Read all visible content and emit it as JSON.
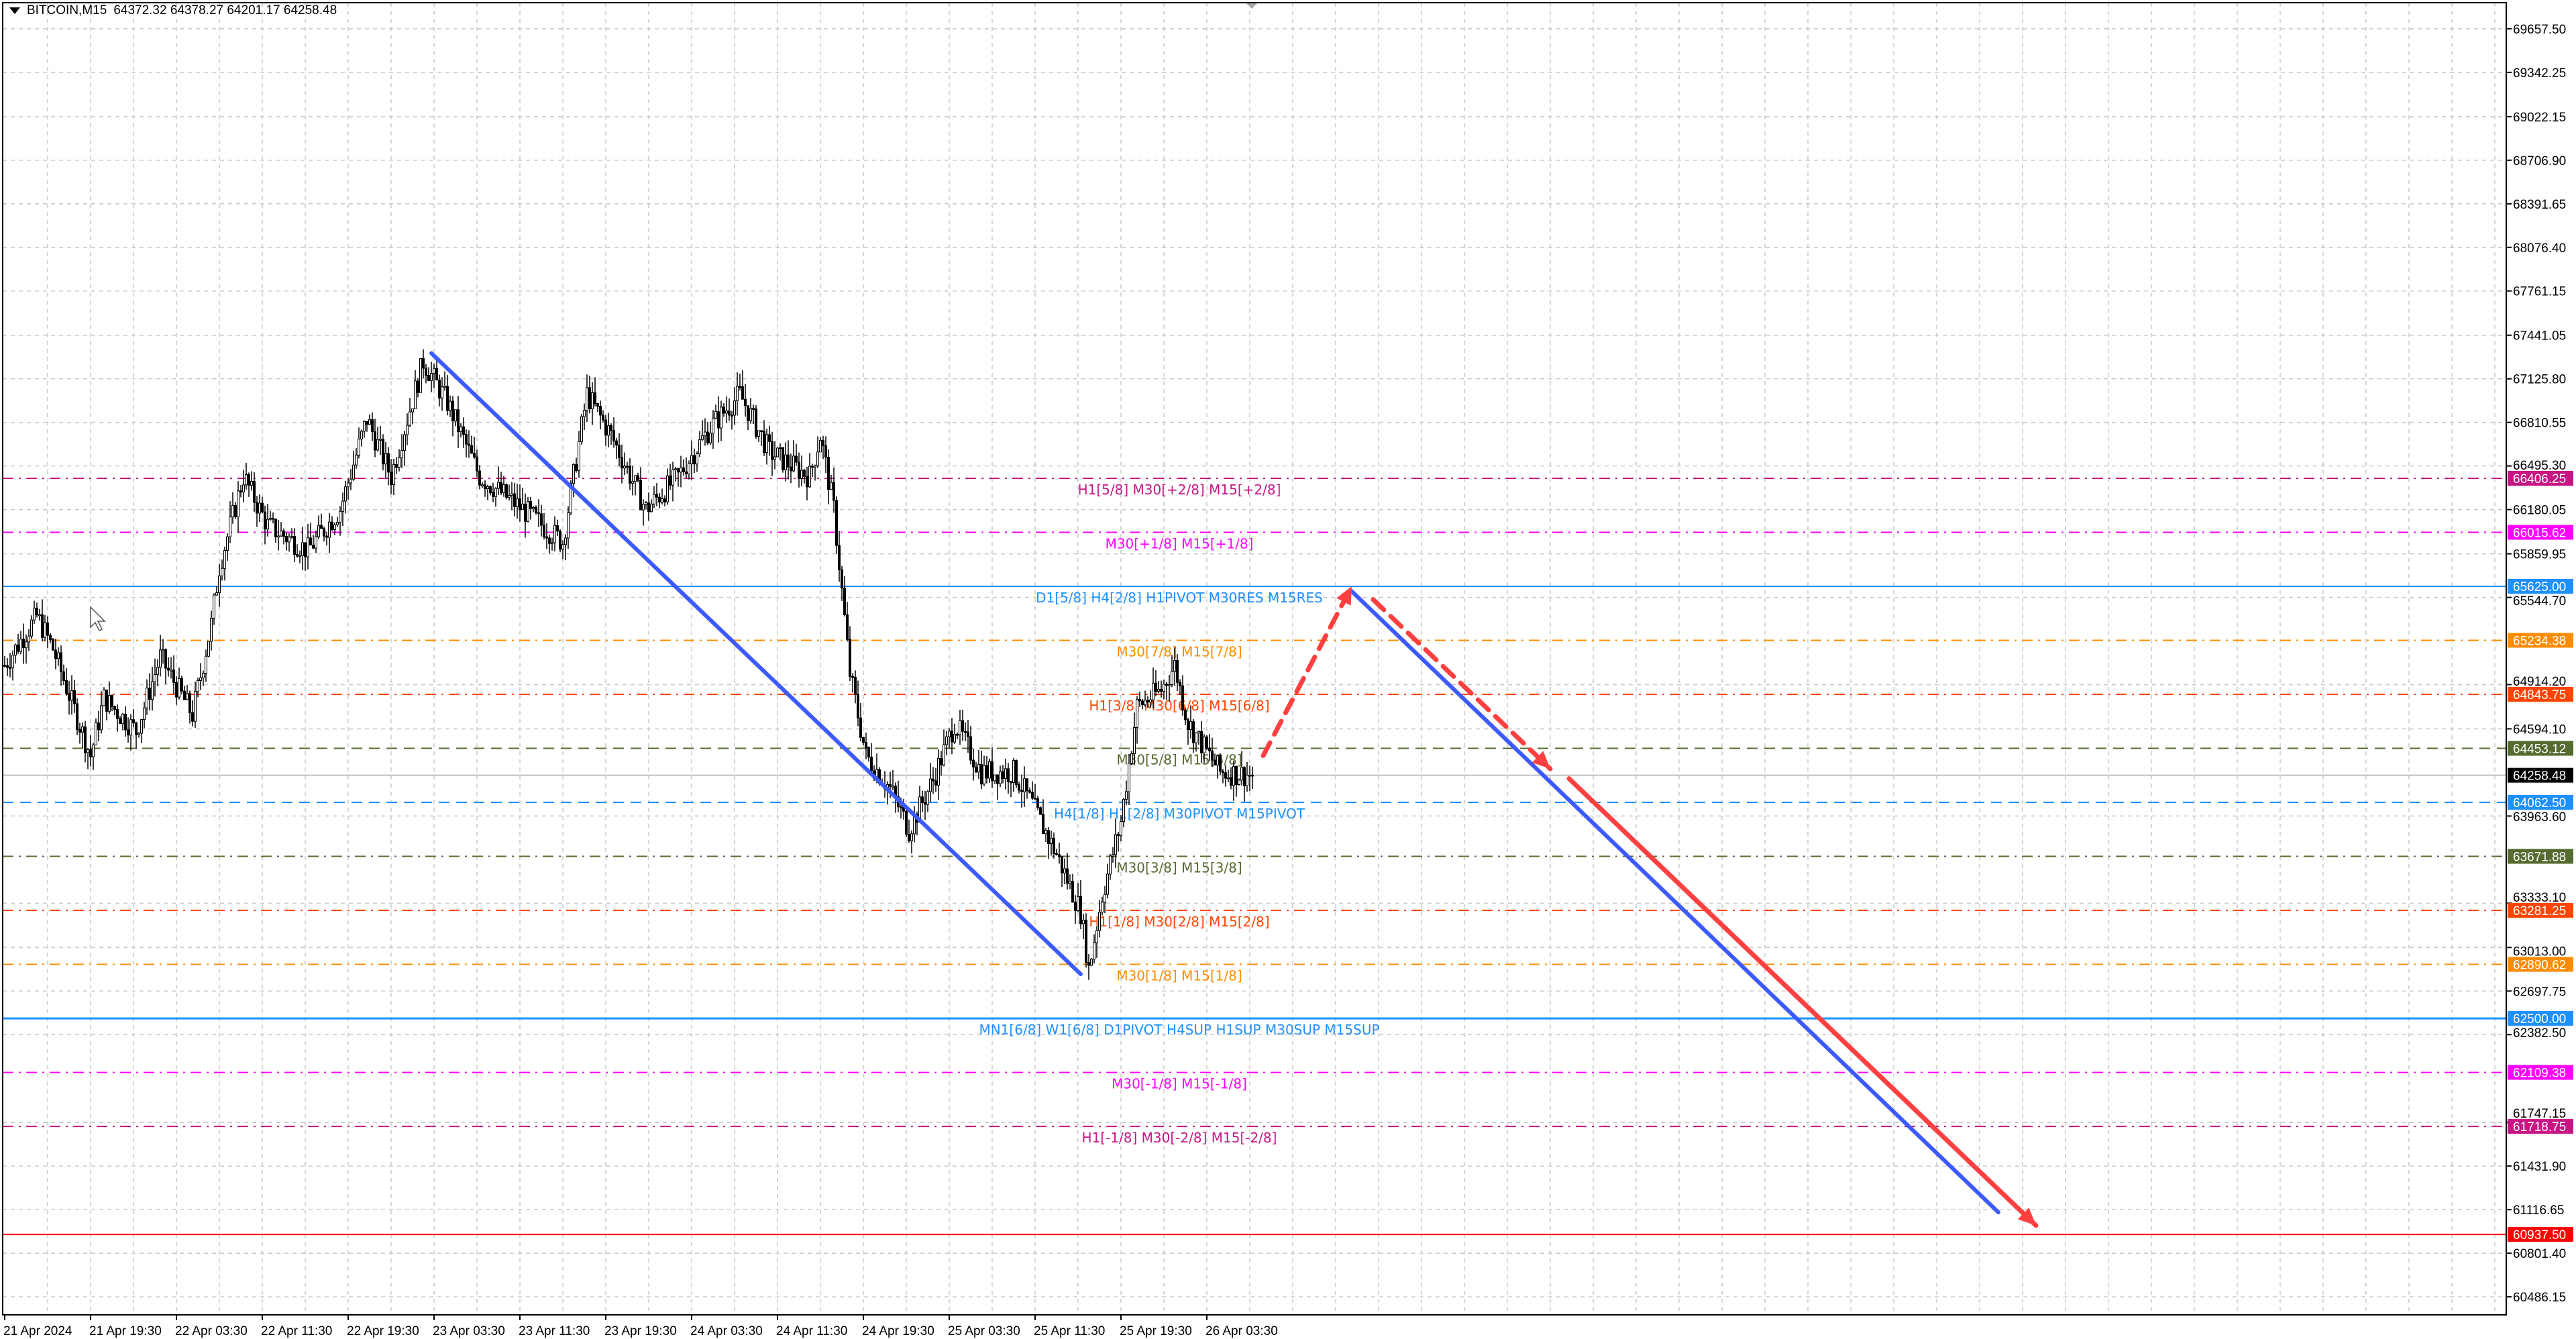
{
  "header": {
    "symbol": "BITCOIN,M15",
    "ohlc": "64372.32 64378.27 64201.17 64258.48"
  },
  "chart_data": {
    "type": "candlestick",
    "symbol": "BITCOIN",
    "timeframe": "M15",
    "bars_per_time_label": 32,
    "time_labels": [
      "21 Apr 2024",
      "21 Apr 19:30",
      "22 Apr 03:30",
      "22 Apr 11:30",
      "22 Apr 19:30",
      "23 Apr 03:30",
      "23 Apr 11:30",
      "23 Apr 19:30",
      "24 Apr 03:30",
      "24 Apr 11:30",
      "24 Apr 19:30",
      "25 Apr 03:30",
      "25 Apr 11:30",
      "25 Apr 19:30",
      "26 Apr 03:30"
    ],
    "price_ticks": [
      "69657.50",
      "69342.25",
      "69022.15",
      "68706.90",
      "68391.65",
      "68076.40",
      "67761.15",
      "67441.05",
      "67125.80",
      "66810.55",
      "66495.30",
      "66180.05",
      "65859.95",
      "65544.70",
      "64914.20",
      "64594.10",
      "63963.60",
      "63333.10",
      "63013.00",
      "62697.75",
      "62382.50",
      "61747.15",
      "61431.90",
      "61116.65",
      "60801.40",
      "60486.15"
    ],
    "price_path": [
      [
        0,
        65054
      ],
      [
        12,
        65410
      ],
      [
        18,
        65173
      ],
      [
        32,
        64400
      ],
      [
        37,
        64816
      ],
      [
        49,
        64578
      ],
      [
        58,
        65113
      ],
      [
        70,
        64697
      ],
      [
        77,
        65351
      ],
      [
        80,
        65767
      ],
      [
        89,
        66420
      ],
      [
        98,
        66064
      ],
      [
        113,
        65886
      ],
      [
        125,
        66183
      ],
      [
        135,
        66836
      ],
      [
        144,
        66420
      ],
      [
        156,
        67252
      ],
      [
        165,
        66955
      ],
      [
        177,
        66420
      ],
      [
        193,
        66183
      ],
      [
        208,
        65945
      ],
      [
        217,
        67014
      ],
      [
        226,
        66717
      ],
      [
        239,
        66183
      ],
      [
        251,
        66420
      ],
      [
        263,
        66777
      ],
      [
        274,
        67014
      ],
      [
        285,
        66598
      ],
      [
        300,
        66420
      ],
      [
        304,
        66717
      ],
      [
        309,
        66183
      ],
      [
        315,
        64994
      ],
      [
        321,
        64400
      ],
      [
        330,
        64163
      ],
      [
        337,
        63866
      ],
      [
        346,
        64222
      ],
      [
        354,
        64638
      ],
      [
        364,
        64281
      ],
      [
        376,
        64281
      ],
      [
        383,
        64044
      ],
      [
        392,
        63687
      ],
      [
        401,
        63271
      ],
      [
        404,
        62856
      ],
      [
        409,
        63390
      ],
      [
        416,
        63925
      ],
      [
        422,
        64757
      ],
      [
        431,
        64876
      ],
      [
        436,
        65054
      ],
      [
        441,
        64638
      ],
      [
        453,
        64281
      ],
      [
        465,
        64258.48
      ]
    ],
    "last_price": "64258.48",
    "levels": [
      {
        "price": "66406.25",
        "label": "H1[5/8] M30[+2/8] M15[+2/8]",
        "color": "#C71585",
        "style": "dashdot"
      },
      {
        "price": "66015.62",
        "label": "M30[+1/8] M15[+1/8]",
        "color": "#FF00FF",
        "style": "dashdot"
      },
      {
        "price": "65625.00",
        "label": "D1[5/8] H4[2/8] H1PIVOT M30RES M15RES",
        "color": "#1E90FF",
        "style": "solid"
      },
      {
        "price": "65234.38",
        "label": "M30[7/8] M15[7/8]",
        "color": "#FF8C00",
        "style": "dashdot"
      },
      {
        "price": "64843.75",
        "label": "H1[3/8] M30[6/8] M15[6/8]",
        "color": "#FF4500",
        "style": "dashdot"
      },
      {
        "price": "64453.12",
        "label": "M30[5/8] M15[5/8]",
        "color": "#556B2F",
        "style": "dash"
      },
      {
        "price": "64062.50",
        "label": "H4[1/8] H1[2/8] M30PIVOT M15PIVOT",
        "color": "#1E90FF",
        "style": "dash"
      },
      {
        "price": "63671.88",
        "label": "M30[3/8] M15[3/8]",
        "color": "#556B2F",
        "style": "dashdot"
      },
      {
        "price": "63281.25",
        "label": "H1[1/8] M30[2/8] M15[2/8]",
        "color": "#FF4500",
        "style": "dashdot"
      },
      {
        "price": "62890.62",
        "label": "M30[1/8] M15[1/8]",
        "color": "#FF8C00",
        "style": "dashdot"
      },
      {
        "price": "62500.00",
        "label": "MN1[6/8] W1[6/8] D1PIVOT H4SUP H1SUP M30SUP M15SUP",
        "color": "#1E90FF",
        "style": "solidthick"
      },
      {
        "price": "62109.38",
        "label": "M30[-1/8] M15[-1/8]",
        "color": "#FF00FF",
        "style": "dashdot"
      },
      {
        "price": "61718.75",
        "label": "H1[-1/8] M30[-2/8] M15[-2/8]",
        "color": "#C71585",
        "style": "dashdot"
      },
      {
        "price": "60937.50",
        "label": "",
        "color": "#FF0000",
        "style": "solid"
      }
    ],
    "drawings": [
      {
        "kind": "trendline",
        "color": "#3D5AFE",
        "from": [
          159,
          67311
        ],
        "to": [
          401,
          62820
        ]
      },
      {
        "kind": "trendline",
        "color": "#3D5AFE",
        "from": [
          502,
          65589
        ],
        "to": [
          743,
          61097
        ]
      },
      {
        "kind": "arrow-dashed",
        "color": "#FF4040",
        "from": [
          469,
          64400
        ],
        "to": [
          502,
          65625
        ]
      },
      {
        "kind": "arrow-dashed",
        "color": "#FF4040",
        "from": [
          510,
          65529
        ],
        "to": [
          576,
          64305
        ]
      },
      {
        "kind": "arrow",
        "color": "#FF4040",
        "from": [
          583,
          64234
        ],
        "to": [
          757,
          61002
        ]
      }
    ]
  }
}
